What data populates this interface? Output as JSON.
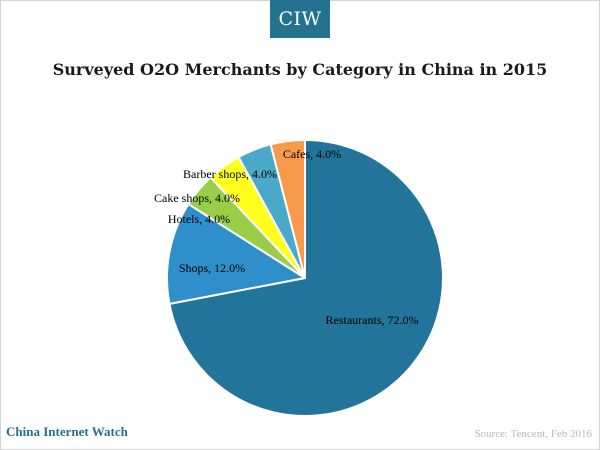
{
  "header": {
    "logo": "CIW"
  },
  "footer": {
    "brand": "China Internet Watch",
    "source": "Source: Tencent, Feb 2016"
  },
  "chart_data": {
    "type": "pie",
    "title": "Surveyed O2O Merchants by Category in China in 2015",
    "slices": [
      {
        "label": "Restaurants, 72.0%",
        "category": "Restaurants",
        "value": 72.0,
        "color": "#22749a"
      },
      {
        "label": "Shops, 12.0%",
        "category": "Shops",
        "value": 12.0,
        "color": "#2f8fcb"
      },
      {
        "label": "Hotels, 4.0%",
        "category": "Hotels",
        "value": 4.0,
        "color": "#9acd4a"
      },
      {
        "label": "Cake shops, 4.0%",
        "category": "Cake shops",
        "value": 4.0,
        "color": "#ffff1e"
      },
      {
        "label": "Barber shops, 4.0%",
        "category": "Barber shops",
        "value": 4.0,
        "color": "#4aa8c8"
      },
      {
        "label": "Cafes, 4.0%",
        "category": "Cafes",
        "value": 4.0,
        "color": "#f79a4c"
      }
    ],
    "legend": "none"
  }
}
